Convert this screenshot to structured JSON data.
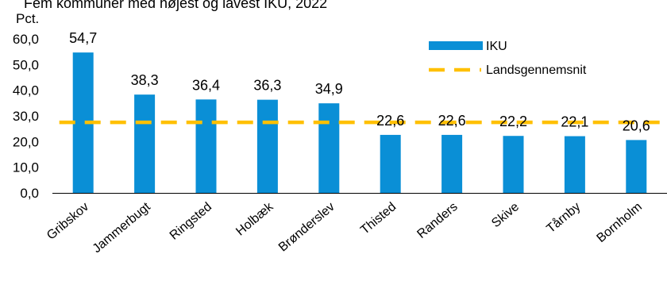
{
  "chart_data": {
    "type": "bar",
    "title": "Fem kommuner med højest og lavest IKU, 2022",
    "ylabel": "Pct.",
    "xlabel": "",
    "ylim": [
      0,
      60
    ],
    "yticks": [
      "0,0",
      "10,0",
      "20,0",
      "30,0",
      "40,0",
      "50,0",
      "60,0"
    ],
    "grid": false,
    "legend_position": "top-right",
    "categories": [
      "Gribskov",
      "Jammerbugt",
      "Ringsted",
      "Holbæk",
      "Brønderslev",
      "Thisted",
      "Randers",
      "Skive",
      "Tårnby",
      "Bornholm"
    ],
    "series": [
      {
        "name": "IKU",
        "type": "bar",
        "color": "#0a8fd6",
        "values": [
          54.7,
          38.3,
          36.4,
          36.3,
          34.9,
          22.6,
          22.6,
          22.2,
          22.1,
          20.6
        ],
        "labels": [
          "54,7",
          "38,3",
          "36,4",
          "36,3",
          "34,9",
          "22,6",
          "22,6",
          "22,2",
          "22,1",
          "20,6"
        ]
      },
      {
        "name": "Landsgennemsnit",
        "type": "line",
        "style": "dashed",
        "color": "#ffc000",
        "value": 27.5
      }
    ]
  }
}
